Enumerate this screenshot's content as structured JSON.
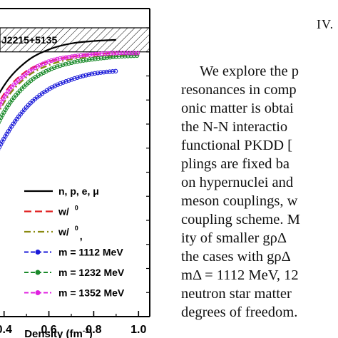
{
  "chart_data": {
    "type": "line",
    "xlabel": "Density (fm",
    "xlabel_sup": "-3",
    "xlabel_tail": ")",
    "xlim": [
      0.0,
      1.05
    ],
    "ylim": [
      0.0,
      2.56
    ],
    "x_ticks": [
      0.4,
      0.6,
      0.8,
      1.0
    ],
    "x_tick_labels": [
      "0.4",
      "0.6",
      "0.8",
      "1.0"
    ],
    "band": {
      "label": "J2215+5135",
      "range": [
        2.2,
        2.4
      ]
    },
    "legend": [
      {
        "text": "n, p, e, μ"
      },
      {
        "text": "w/",
        "sup": "0"
      },
      {
        "text": "w/",
        "sup": "0",
        "tail": ","
      },
      {
        "text": "m  = 1112 MeV"
      },
      {
        "text": "m  = 1232 MeV"
      },
      {
        "text": "m  = 1352 MeV"
      }
    ],
    "series": [
      {
        "style": "solid",
        "color": "#000000",
        "x": [
          0.0,
          0.1,
          0.2,
          0.3,
          0.4,
          0.5,
          0.6,
          0.7,
          0.8,
          0.9
        ],
        "y": [
          0.0,
          0.35,
          0.95,
          1.55,
          1.92,
          2.12,
          2.22,
          2.27,
          2.29,
          2.3
        ]
      },
      {
        "style": "dashed",
        "color": "#e02020",
        "x": [
          0.0,
          0.1,
          0.2,
          0.3,
          0.4,
          0.5,
          0.6,
          0.7,
          0.8,
          0.9
        ],
        "y": [
          0.0,
          0.3,
          0.88,
          1.47,
          1.85,
          2.04,
          2.12,
          2.16,
          2.18,
          2.19
        ]
      },
      {
        "style": "dashdot",
        "color": "#8a8a10",
        "x": [
          0.0,
          0.1,
          0.2,
          0.3,
          0.4,
          0.5,
          0.6,
          0.7,
          0.8,
          0.9,
          1.0
        ],
        "y": [
          0.0,
          0.25,
          0.78,
          1.37,
          1.78,
          1.99,
          2.09,
          2.14,
          2.16,
          2.17,
          2.18
        ]
      },
      {
        "style": "marker",
        "marker": "star",
        "color": "#1a1ad8",
        "x": [
          0.0,
          0.1,
          0.2,
          0.3,
          0.4,
          0.5,
          0.6,
          0.7,
          0.8,
          0.9
        ],
        "y": [
          0.0,
          0.2,
          0.62,
          1.1,
          1.48,
          1.74,
          1.89,
          1.97,
          2.02,
          2.04
        ]
      },
      {
        "style": "marker",
        "marker": "star",
        "color": "#1a8a2a",
        "x": [
          0.0,
          0.1,
          0.2,
          0.3,
          0.4,
          0.5,
          0.6,
          0.7,
          0.8,
          0.9,
          1.0
        ],
        "y": [
          0.0,
          0.24,
          0.74,
          1.29,
          1.7,
          1.93,
          2.05,
          2.11,
          2.14,
          2.16,
          2.17
        ]
      },
      {
        "style": "marker",
        "marker": "star",
        "color": "#e020e0",
        "x": [
          0.0,
          0.1,
          0.2,
          0.3,
          0.4,
          0.5,
          0.6,
          0.7,
          0.8,
          0.9,
          1.0
        ],
        "y": [
          0.0,
          0.27,
          0.82,
          1.41,
          1.82,
          2.02,
          2.12,
          2.16,
          2.18,
          2.19,
          2.19
        ]
      }
    ]
  },
  "paper": {
    "heading": "IV.",
    "lines": [
      "We explore the p",
      "resonances in comp",
      "onic matter is obtai",
      "the N-N interactio",
      "functional PKDD [",
      "plings are fixed ba",
      "on hypernuclei and",
      "meson couplings, w",
      "coupling scheme. M",
      "ity of smaller gρΔ",
      "the cases with gρΔ",
      "mΔ = 1112 MeV, 12",
      "neutron star matter",
      "degrees of freedom."
    ]
  }
}
